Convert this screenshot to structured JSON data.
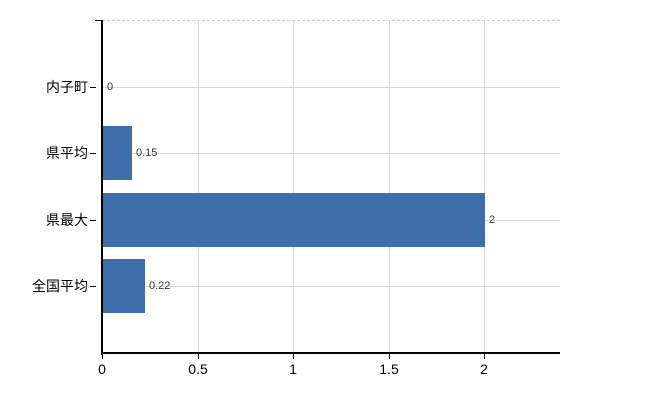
{
  "chart_data": {
    "type": "bar",
    "orientation": "horizontal",
    "title": "",
    "xlabel": "",
    "ylabel": "",
    "categories": [
      "内子町",
      "県平均",
      "県最大",
      "全国平均"
    ],
    "values": [
      0,
      0.15,
      2,
      0.22
    ],
    "value_labels": [
      "0",
      "0.15",
      "2",
      "0.22"
    ],
    "xticks": [
      0,
      0.5,
      1,
      1.5,
      2
    ],
    "xtick_labels": [
      "0",
      "0.5",
      "1",
      "1.5",
      "2"
    ],
    "xlim": [
      0,
      2.4
    ],
    "grid": true,
    "legend": false,
    "colors": {
      "bar": "#3e6ea9",
      "gridline": "#d9d9d9",
      "top_border": "#d3cdc9",
      "axis": "#000000",
      "category_text": "#000000",
      "tick_text": "#000000",
      "value_text": "#333333",
      "background": "#ffffff"
    }
  }
}
